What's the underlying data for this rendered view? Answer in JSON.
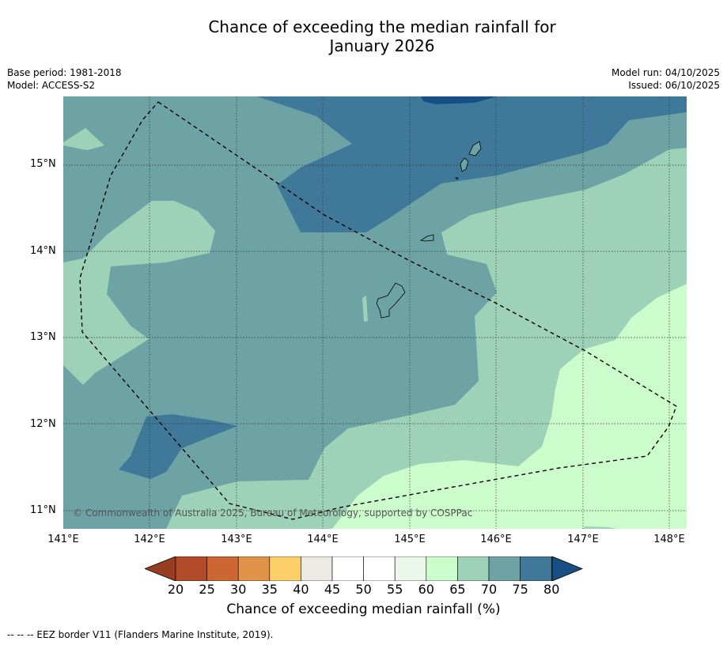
{
  "title_line1": "Chance of exceeding the median rainfall for",
  "title_line2": "January 2026",
  "meta": {
    "base_period": "Base period: 1981-2018",
    "model": "Model: ACCESS-S2",
    "model_run": "Model run: 04/10/2025",
    "issued": "Issued: 06/10/2025"
  },
  "map": {
    "copyright": "© Commonwealth of Australia 2025, Bureau of Meteorology, supported by COSPPac",
    "lat_labels": [
      "15°N",
      "14°N",
      "13°N",
      "12°N",
      "11°N"
    ],
    "lon_labels": [
      "141°E",
      "142°E",
      "143°E",
      "144°E",
      "145°E",
      "146°E",
      "147°E",
      "148°E"
    ],
    "lon_range": [
      141,
      148.2
    ],
    "lat_range": [
      10.8,
      15.8
    ]
  },
  "legend": {
    "title": "Chance of exceeding median rainfall (%)",
    "ticks": [
      "20",
      "25",
      "30",
      "35",
      "40",
      "45",
      "50",
      "55",
      "60",
      "65",
      "70",
      "75",
      "80"
    ],
    "colors": [
      "#b34a2a",
      "#cc6633",
      "#e0944a",
      "#fccf68",
      "#ede9e4",
      "#ffffff",
      "#ffffff",
      "#eaf7ea",
      "#ccfccc",
      "#9dd1b8",
      "#6ea3a6",
      "#3f7898"
    ],
    "under_color": "#973d24",
    "over_color": "#174f85"
  },
  "footer": "--  --  -- EEZ border V11 (Flanders Marine Institute, 2019)."
}
